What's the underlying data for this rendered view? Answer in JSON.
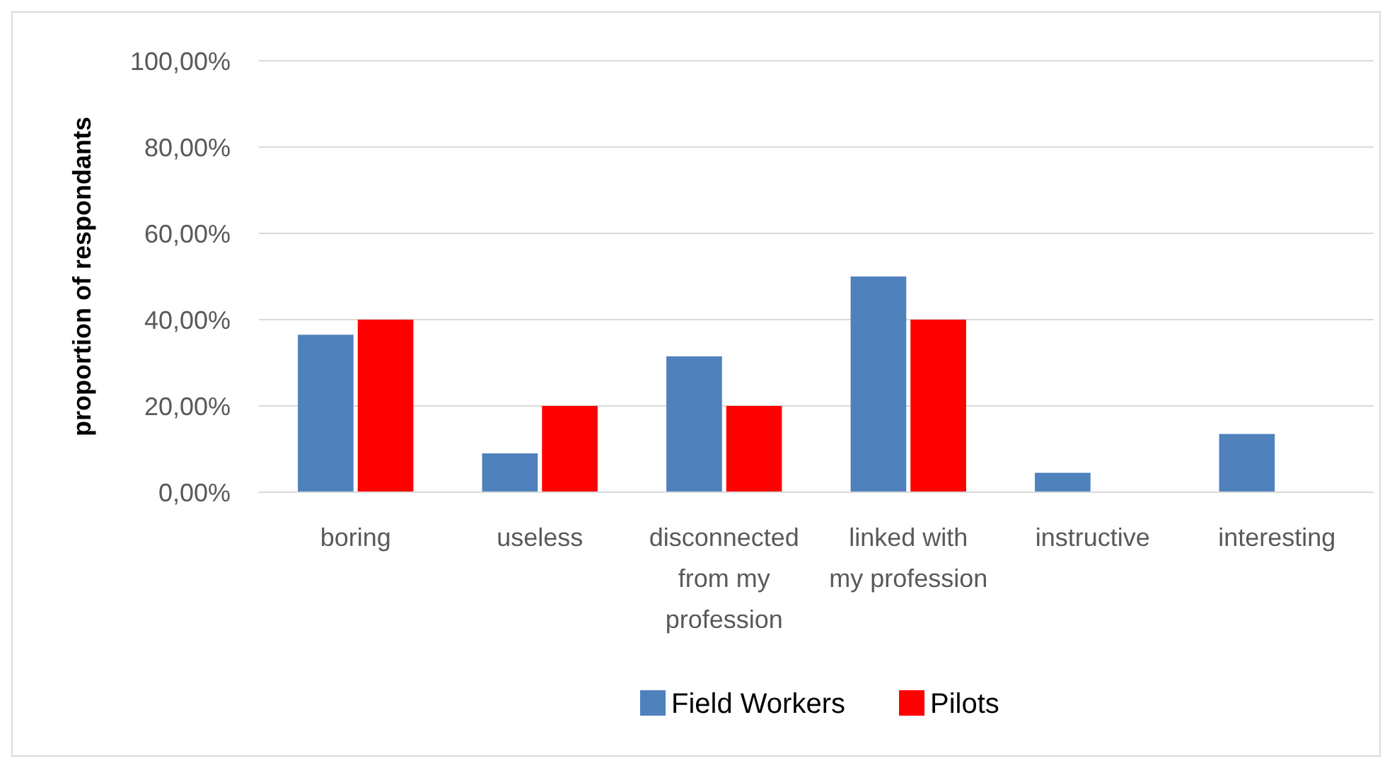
{
  "chart_data": {
    "type": "bar",
    "ylabel": "proportion of respondants",
    "categories": [
      "boring",
      "useless",
      "disconnected from my profession",
      "linked with my profession",
      "instructive",
      "interesting"
    ],
    "series": [
      {
        "name": "Field Workers",
        "color": "#4f81bd",
        "values": [
          36.5,
          9,
          31.5,
          50,
          4.5,
          13.5
        ]
      },
      {
        "name": "Pilots",
        "color": "#ff0000",
        "values": [
          40,
          20,
          20,
          40,
          0,
          0
        ]
      }
    ],
    "ylim": [
      0,
      100
    ],
    "yticks": [
      {
        "value": 0,
        "label": "0,00%"
      },
      {
        "value": 20,
        "label": "20,00%"
      },
      {
        "value": 40,
        "label": "40,00%"
      },
      {
        "value": 60,
        "label": "60,00%"
      },
      {
        "value": 80,
        "label": "80,00%"
      },
      {
        "value": 100,
        "label": "100,00%"
      }
    ],
    "grid": "y",
    "legend": "bottom"
  }
}
